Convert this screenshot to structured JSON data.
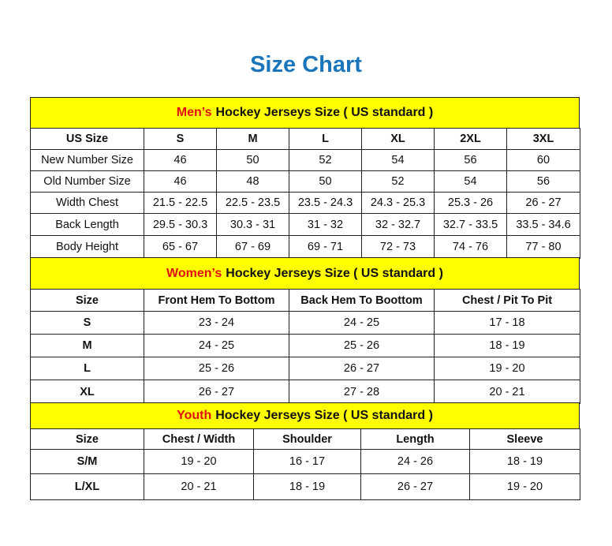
{
  "title": "Size Chart",
  "colors": {
    "title": "#1b75bb",
    "band": "#ffff00",
    "highlight": "#e01010"
  },
  "mens": {
    "heading_highlight": "Men’s",
    "heading_rest": "Hockey Jerseys Size ( US standard )",
    "rows": [
      [
        "US Size",
        "S",
        "M",
        "L",
        "XL",
        "2XL",
        "3XL"
      ],
      [
        "New Number Size",
        "46",
        "50",
        "52",
        "54",
        "56",
        "60"
      ],
      [
        "Old Number Size",
        "46",
        "48",
        "50",
        "52",
        "54",
        "56"
      ],
      [
        "Width Chest",
        "21.5 - 22.5",
        "22.5 - 23.5",
        "23.5 - 24.3",
        "24.3 - 25.3",
        "25.3 - 26",
        "26 - 27"
      ],
      [
        "Back Length",
        "29.5 - 30.3",
        "30.3 - 31",
        "31 - 32",
        "32 - 32.7",
        "32.7 - 33.5",
        "33.5 - 34.6"
      ],
      [
        "Body Height",
        "65 - 67",
        "67 - 69",
        "69 - 71",
        "72 - 73",
        "74 - 76",
        "77 - 80"
      ]
    ]
  },
  "womens": {
    "heading_highlight": "Women’s",
    "heading_rest": "Hockey Jerseys Size ( US standard )",
    "rows": [
      [
        "Size",
        "Front Hem To Bottom",
        "Back Hem To Boottom",
        "Chest / Pit To Pit"
      ],
      [
        "S",
        "23 - 24",
        "24 - 25",
        "17 - 18"
      ],
      [
        "M",
        "24 - 25",
        "25 - 26",
        "18 - 19"
      ],
      [
        "L",
        "25 - 26",
        "26 - 27",
        "19 - 20"
      ],
      [
        "XL",
        "26 - 27",
        "27 - 28",
        "20 - 21"
      ]
    ]
  },
  "youth": {
    "heading_highlight": "Youth",
    "heading_rest": "Hockey Jerseys Size ( US standard )",
    "rows": [
      [
        "Size",
        "Chest / Width",
        "Shoulder",
        "Length",
        "Sleeve"
      ],
      [
        "S/M",
        "19 - 20",
        "16 - 17",
        "24 - 26",
        "18 - 19"
      ],
      [
        "L/XL",
        "20 - 21",
        "18 - 19",
        "26 - 27",
        "19 - 20"
      ]
    ]
  }
}
